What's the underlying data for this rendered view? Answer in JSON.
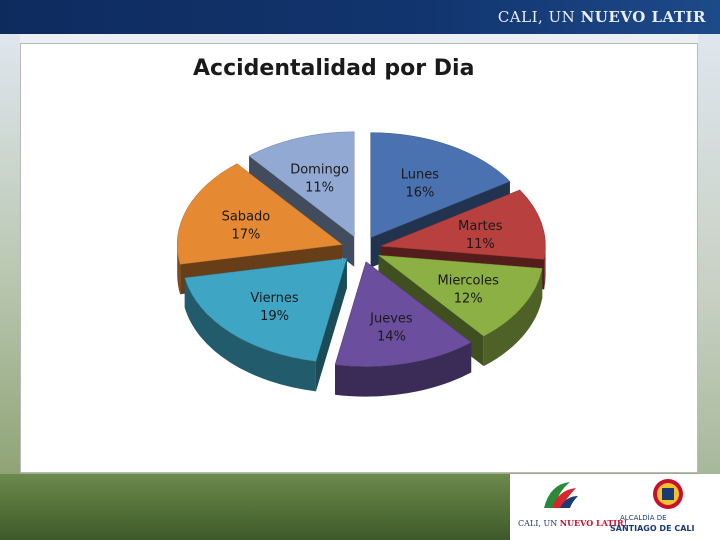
{
  "header": {
    "brand_light": "CALI, UN ",
    "brand_bold": "NUEVO LATIR"
  },
  "chart_data": {
    "type": "pie",
    "title": "Accidentalidad por Dia",
    "exploded": true,
    "three_d": true,
    "slices": [
      {
        "label": "Lunes",
        "value": 16,
        "pct_label": "16%",
        "color": "#4a72b0"
      },
      {
        "label": "Martes",
        "value": 11,
        "pct_label": "11%",
        "color": "#b8403f"
      },
      {
        "label": "Miercoles",
        "value": 12,
        "pct_label": "12%",
        "color": "#8db045"
      },
      {
        "label": "Jueves",
        "value": 14,
        "pct_label": "14%",
        "color": "#6b4f9e"
      },
      {
        "label": "Viernes",
        "value": 19,
        "pct_label": "19%",
        "color": "#3ea6c4"
      },
      {
        "label": "Sabado",
        "value": 17,
        "pct_label": "17%",
        "color": "#e58a33"
      },
      {
        "label": "Domingo",
        "value": 11,
        "pct_label": "11%",
        "color": "#92a9d3"
      }
    ]
  },
  "footer": {
    "cali_logo_light": "CALI, UN ",
    "cali_logo_red": "NUEVO LATIR!",
    "seal_line1": "ALCALDÍA DE",
    "seal_line2": "SANTIAGO DE CALI"
  }
}
